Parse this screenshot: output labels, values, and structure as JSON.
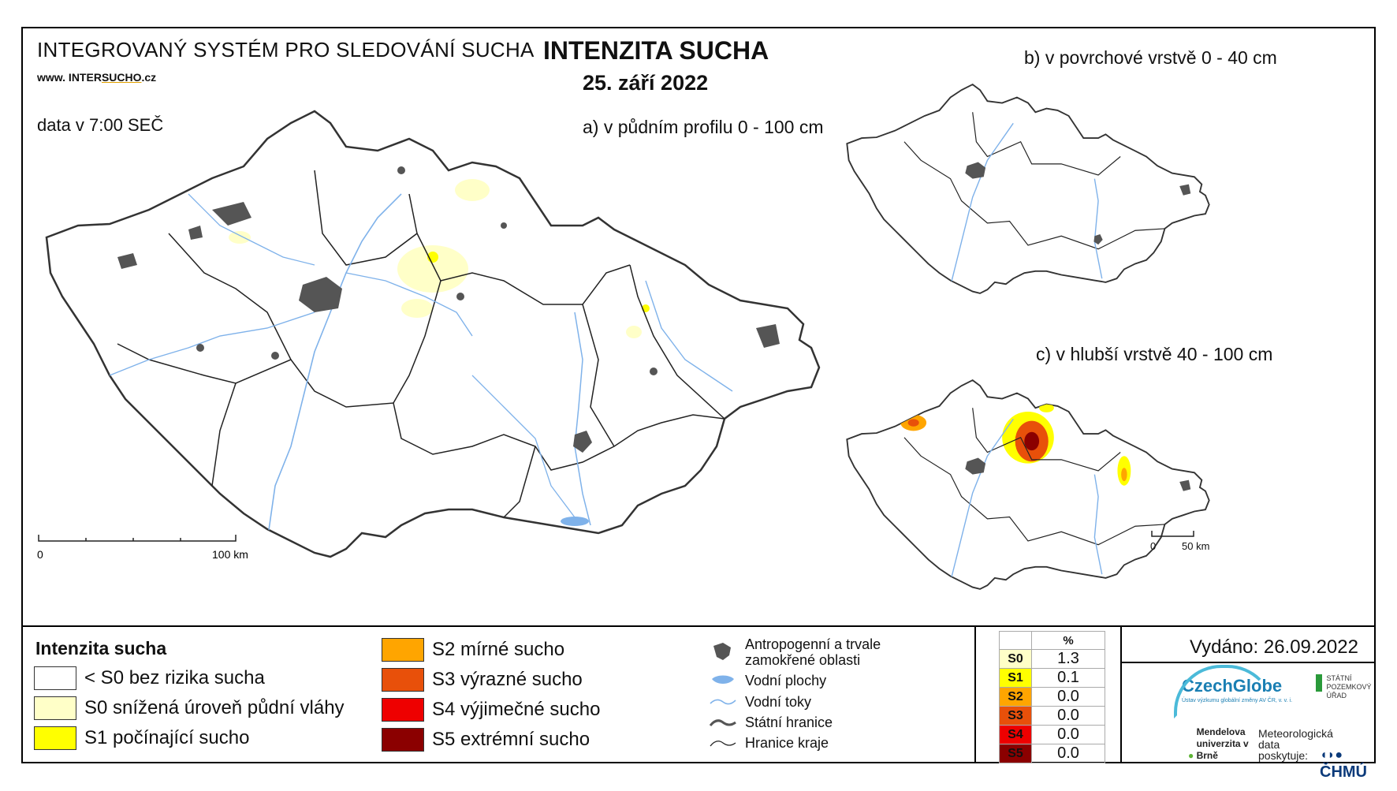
{
  "header": {
    "system": "INTEGROVANÝ SYSTÉM PRO SLEDOVÁNÍ SUCHA",
    "website_prefix": "www. INTER",
    "website_underlined": "SUCHO",
    "website_suffix": ".cz",
    "data_time": "data v 7:00 SEČ",
    "title": "INTENZITA SUCHA",
    "date": "25. září 2022"
  },
  "maps": {
    "a_label": "a) v půdním profilu 0 - 100 cm",
    "b_label": "b) v povrchové vrstvě 0 - 40 cm",
    "c_label": "c) v hlubší vrstvě 40 - 100 cm",
    "scale_main": {
      "start": "0",
      "end": "100 km"
    },
    "scale_small": {
      "start": "0",
      "end": "50 km"
    }
  },
  "legend": {
    "title": "Intenzita sucha",
    "classes": [
      {
        "label": "< S0 bez rizika sucha",
        "color": "#ffffff"
      },
      {
        "label": "S0 snížená úroveň půdní vláhy",
        "color": "#ffffc8"
      },
      {
        "label": "S1 počínající sucho",
        "color": "#ffff00"
      },
      {
        "label": "S2 mírné sucho",
        "color": "#ffa500"
      },
      {
        "label": "S3 výrazné sucho",
        "color": "#e8500a"
      },
      {
        "label": "S4 výjimečné sucho",
        "color": "#ee0000"
      },
      {
        "label": "S5 extrémní sucho",
        "color": "#8b0000"
      }
    ],
    "symbols": {
      "anthropogenic": "Antropogenní a trvale zamokřené oblasti",
      "water_bodies": "Vodní plochy",
      "streams": "Vodní toky",
      "state_border": "Státní hranice",
      "region_border": "Hranice kraje"
    }
  },
  "stats": {
    "header": "%",
    "rows": [
      {
        "code": "S0",
        "value": "1.3",
        "color": "#ffffc8"
      },
      {
        "code": "S1",
        "value": "0.1",
        "color": "#ffff00"
      },
      {
        "code": "S2",
        "value": "0.0",
        "color": "#ffa500"
      },
      {
        "code": "S3",
        "value": "0.0",
        "color": "#e8500a"
      },
      {
        "code": "S4",
        "value": "0.0",
        "color": "#ee0000"
      },
      {
        "code": "S5",
        "value": "0.0",
        "color": "#8b0000"
      }
    ]
  },
  "footer": {
    "issued": "Vydáno: 26.09.2022",
    "czechglobe": "CzechGlobe",
    "czechglobe_sub": "Ústav výzkumu globální změny AV ČR, v. v. i.",
    "spu": "STÁTNÍ POZEMKOVÝ ÚŘAD",
    "mendel": "Mendelova univerzita v Brně",
    "met_data": "Meteorologická data poskytuje:",
    "chmu": "ČHMÚ"
  },
  "colors": {
    "border": "#222222",
    "river": "#7fb2ea",
    "urban": "#555555"
  }
}
